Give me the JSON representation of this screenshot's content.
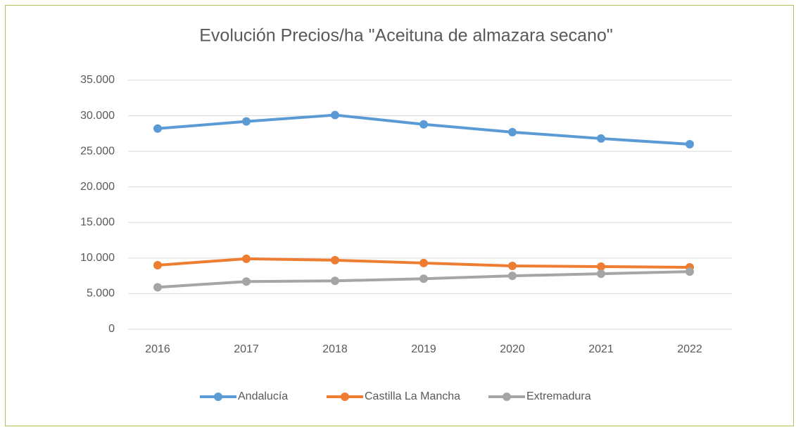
{
  "chart_data": {
    "type": "line",
    "title": "Evolución Precios/ha \"Aceituna de almazara secano\"",
    "categories": [
      "2016",
      "2017",
      "2018",
      "2019",
      "2020",
      "2021",
      "2022"
    ],
    "series": [
      {
        "name": "Andalucía",
        "color": "#5b9bd5",
        "values": [
          28200,
          29200,
          30100,
          28800,
          27700,
          26800,
          26000
        ]
      },
      {
        "name": "Castilla La Mancha",
        "color": "#ed7d31",
        "values": [
          9000,
          9900,
          9700,
          9300,
          8900,
          8800,
          8700
        ]
      },
      {
        "name": "Extremadura",
        "color": "#a5a5a5",
        "values": [
          5900,
          6700,
          6800,
          7100,
          7500,
          7800,
          8100
        ]
      }
    ],
    "ylim": [
      0,
      35000
    ],
    "yticks": [
      0,
      {
        "value": 5000,
        "label": "5.000"
      },
      {
        "value": 10000,
        "label": "10.000"
      },
      {
        "value": 15000,
        "label": "15.000"
      },
      {
        "value": 20000,
        "label": "20.000"
      },
      {
        "value": 25000,
        "label": "25.000"
      },
      {
        "value": 30000,
        "label": "30.000"
      },
      {
        "value": 35000,
        "label": "35.000"
      }
    ],
    "grid": true,
    "legend": "bottom"
  }
}
